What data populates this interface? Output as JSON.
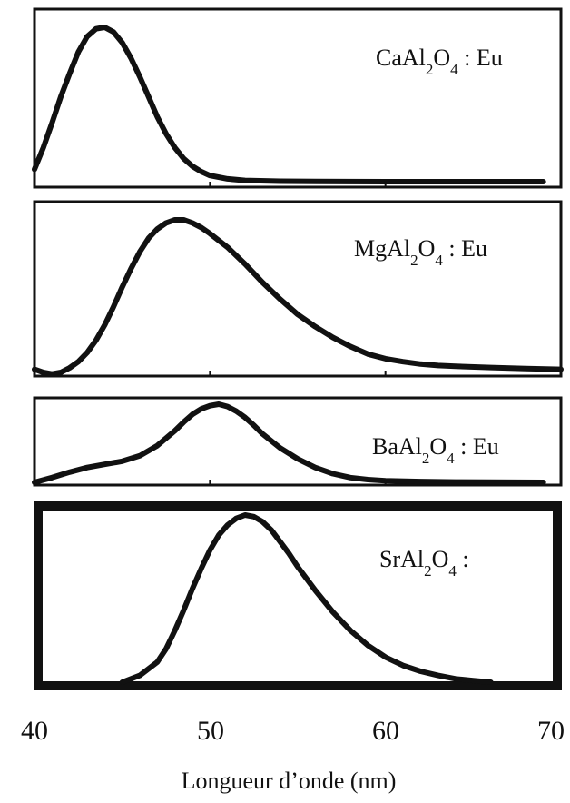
{
  "chart_data": {
    "type": "line",
    "xlabel": "Longueur d’onde (nm)",
    "xlim": [
      40,
      70
    ],
    "x_ticks": [
      "40",
      "50",
      "60",
      "70"
    ],
    "grid": false,
    "panels": [
      {
        "label": {
          "base": "CaAl",
          "sub1": "2",
          "mid": "O",
          "sub2": "4",
          "tail": " : Eu"
        },
        "series_points": [
          [
            40.0,
            0.08
          ],
          [
            40.5,
            0.22
          ],
          [
            41.0,
            0.38
          ],
          [
            41.5,
            0.55
          ],
          [
            42.0,
            0.7
          ],
          [
            42.5,
            0.84
          ],
          [
            43.0,
            0.94
          ],
          [
            43.5,
            0.99
          ],
          [
            44.0,
            1.0
          ],
          [
            44.5,
            0.97
          ],
          [
            45.0,
            0.9
          ],
          [
            45.5,
            0.8
          ],
          [
            46.0,
            0.68
          ],
          [
            46.5,
            0.55
          ],
          [
            47.0,
            0.42
          ],
          [
            47.5,
            0.31
          ],
          [
            48.0,
            0.22
          ],
          [
            48.5,
            0.15
          ],
          [
            49.0,
            0.1
          ],
          [
            49.5,
            0.065
          ],
          [
            50.0,
            0.04
          ],
          [
            51.0,
            0.018
          ],
          [
            52.0,
            0.008
          ],
          [
            54.0,
            0.003
          ],
          [
            56.0,
            0.001
          ],
          [
            60.0,
            0.0
          ],
          [
            65.0,
            0.0
          ],
          [
            69.0,
            0.0
          ]
        ]
      },
      {
        "label": {
          "base": "MgAl",
          "sub1": "2",
          "mid": "O",
          "sub2": "4",
          "tail": " : Eu"
        },
        "series_points": [
          [
            40.0,
            0.02
          ],
          [
            40.5,
            0.0
          ],
          [
            41.0,
            -0.01
          ],
          [
            41.5,
            0.0
          ],
          [
            42.0,
            0.03
          ],
          [
            42.5,
            0.07
          ],
          [
            43.0,
            0.13
          ],
          [
            43.5,
            0.21
          ],
          [
            44.0,
            0.31
          ],
          [
            44.5,
            0.43
          ],
          [
            45.0,
            0.56
          ],
          [
            45.5,
            0.68
          ],
          [
            46.0,
            0.79
          ],
          [
            46.5,
            0.88
          ],
          [
            47.0,
            0.94
          ],
          [
            47.5,
            0.98
          ],
          [
            48.0,
            1.0
          ],
          [
            48.5,
            1.0
          ],
          [
            49.0,
            0.98
          ],
          [
            49.5,
            0.95
          ],
          [
            50.0,
            0.91
          ],
          [
            51.0,
            0.82
          ],
          [
            52.0,
            0.71
          ],
          [
            53.0,
            0.59
          ],
          [
            54.0,
            0.48
          ],
          [
            55.0,
            0.38
          ],
          [
            56.0,
            0.3
          ],
          [
            57.0,
            0.23
          ],
          [
            58.0,
            0.17
          ],
          [
            59.0,
            0.12
          ],
          [
            60.0,
            0.09
          ],
          [
            61.0,
            0.07
          ],
          [
            62.0,
            0.055
          ],
          [
            63.0,
            0.045
          ],
          [
            64.0,
            0.04
          ],
          [
            66.0,
            0.032
          ],
          [
            68.0,
            0.025
          ],
          [
            70.0,
            0.02
          ]
        ]
      },
      {
        "label": {
          "base": "BaAl",
          "sub1": "2",
          "mid": "O",
          "sub2": "4",
          "tail": " : Eu"
        },
        "series_points": [
          [
            40.0,
            0.0
          ],
          [
            41.0,
            0.06
          ],
          [
            42.0,
            0.13
          ],
          [
            43.0,
            0.19
          ],
          [
            44.0,
            0.23
          ],
          [
            45.0,
            0.27
          ],
          [
            46.0,
            0.34
          ],
          [
            47.0,
            0.47
          ],
          [
            48.0,
            0.66
          ],
          [
            48.5,
            0.77
          ],
          [
            49.0,
            0.87
          ],
          [
            49.5,
            0.94
          ],
          [
            50.0,
            0.98
          ],
          [
            50.5,
            1.0
          ],
          [
            51.0,
            0.97
          ],
          [
            51.5,
            0.91
          ],
          [
            52.0,
            0.83
          ],
          [
            52.5,
            0.73
          ],
          [
            53.0,
            0.62
          ],
          [
            54.0,
            0.44
          ],
          [
            55.0,
            0.3
          ],
          [
            56.0,
            0.19
          ],
          [
            57.0,
            0.11
          ],
          [
            58.0,
            0.06
          ],
          [
            59.0,
            0.035
          ],
          [
            60.0,
            0.02
          ],
          [
            62.0,
            0.01
          ],
          [
            64.0,
            0.005
          ],
          [
            66.0,
            0.003
          ],
          [
            69.0,
            0.0
          ]
        ]
      },
      {
        "label": {
          "base": "SrAl",
          "sub1": "2",
          "mid": "O",
          "sub2": "4",
          "tail": " :"
        },
        "series_points": [
          [
            45.0,
            0.0
          ],
          [
            46.0,
            0.04
          ],
          [
            47.0,
            0.12
          ],
          [
            47.5,
            0.2
          ],
          [
            48.0,
            0.31
          ],
          [
            48.5,
            0.43
          ],
          [
            49.0,
            0.56
          ],
          [
            49.5,
            0.68
          ],
          [
            50.0,
            0.79
          ],
          [
            50.5,
            0.88
          ],
          [
            51.0,
            0.94
          ],
          [
            51.5,
            0.98
          ],
          [
            52.0,
            1.0
          ],
          [
            52.5,
            0.99
          ],
          [
            53.0,
            0.96
          ],
          [
            53.5,
            0.91
          ],
          [
            54.0,
            0.84
          ],
          [
            54.5,
            0.77
          ],
          [
            55.0,
            0.69
          ],
          [
            56.0,
            0.55
          ],
          [
            57.0,
            0.42
          ],
          [
            58.0,
            0.31
          ],
          [
            59.0,
            0.22
          ],
          [
            60.0,
            0.15
          ],
          [
            61.0,
            0.1
          ],
          [
            62.0,
            0.065
          ],
          [
            63.0,
            0.04
          ],
          [
            64.0,
            0.02
          ],
          [
            65.0,
            0.01
          ],
          [
            66.0,
            0.0
          ]
        ]
      }
    ]
  }
}
